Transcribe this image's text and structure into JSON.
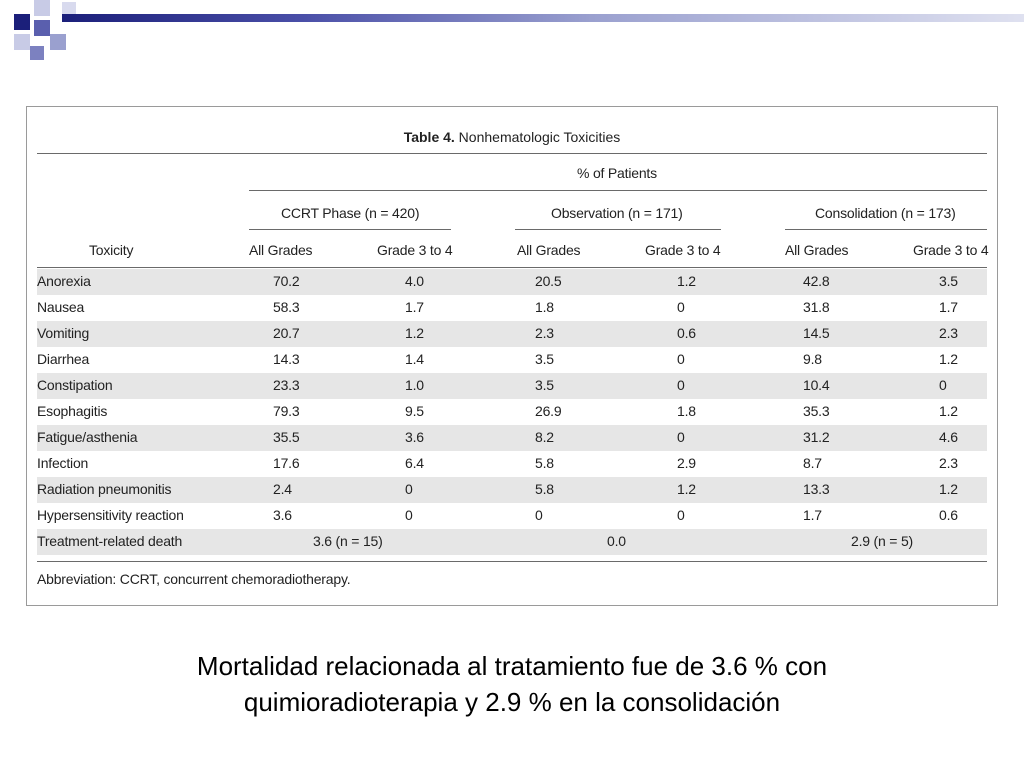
{
  "slide": {
    "subtitle_line1": "Mortalidad relacionada al tratamiento fue de 3.6 % con",
    "subtitle_line2": "quimioradioterapia y 2.9 % en la consolidación"
  },
  "table": {
    "caption_bold": "Table 4.",
    "caption_rest": " Nonhematologic Toxicities",
    "spanner": "% of Patients",
    "groups": [
      "CCRT Phase (n = 420)",
      "Observation (n = 171)",
      "Consolidation (n = 173)"
    ],
    "row_header": "Toxicity",
    "subheaders": [
      "All Grades",
      "Grade 3 to 4",
      "All Grades",
      "Grade 3 to 4",
      "All Grades",
      "Grade 3 to 4"
    ],
    "rows": [
      {
        "name": "Anorexia",
        "v": [
          "70.2",
          "4.0",
          "20.5",
          "1.2",
          "42.8",
          "3.5"
        ]
      },
      {
        "name": "Nausea",
        "v": [
          "58.3",
          "1.7",
          "1.8",
          "0",
          "31.8",
          "1.7"
        ]
      },
      {
        "name": "Vomiting",
        "v": [
          "20.7",
          "1.2",
          "2.3",
          "0.6",
          "14.5",
          "2.3"
        ]
      },
      {
        "name": "Diarrhea",
        "v": [
          "14.3",
          "1.4",
          "3.5",
          "0",
          "9.8",
          "1.2"
        ]
      },
      {
        "name": "Constipation",
        "v": [
          "23.3",
          "1.0",
          "3.5",
          "0",
          "10.4",
          "0"
        ]
      },
      {
        "name": "Esophagitis",
        "v": [
          "79.3",
          "9.5",
          "26.9",
          "1.8",
          "35.3",
          "1.2"
        ]
      },
      {
        "name": "Fatigue/asthenia",
        "v": [
          "35.5",
          "3.6",
          "8.2",
          "0",
          "31.2",
          "4.6"
        ]
      },
      {
        "name": "Infection",
        "v": [
          "17.6",
          "6.4",
          "5.8",
          "2.9",
          "8.7",
          "2.3"
        ]
      },
      {
        "name": "Radiation pneumonitis",
        "v": [
          "2.4",
          "0",
          "5.8",
          "1.2",
          "13.3",
          "1.2"
        ]
      },
      {
        "name": "Hypersensitivity reaction",
        "v": [
          "3.6",
          "0",
          "0",
          "0",
          "1.7",
          "0.6"
        ]
      }
    ],
    "death_row": {
      "name": "Treatment-related death",
      "v": [
        "3.6 (n = 15)",
        "0.0",
        "2.9 (n = 5)"
      ]
    },
    "footnote": "Abbreviation: CCRT, concurrent chemoradiotherapy."
  },
  "colors": {
    "band": "#e6e6e6",
    "deco_dark": "#1b1f7a",
    "deco_light": "#9aa0cf"
  }
}
